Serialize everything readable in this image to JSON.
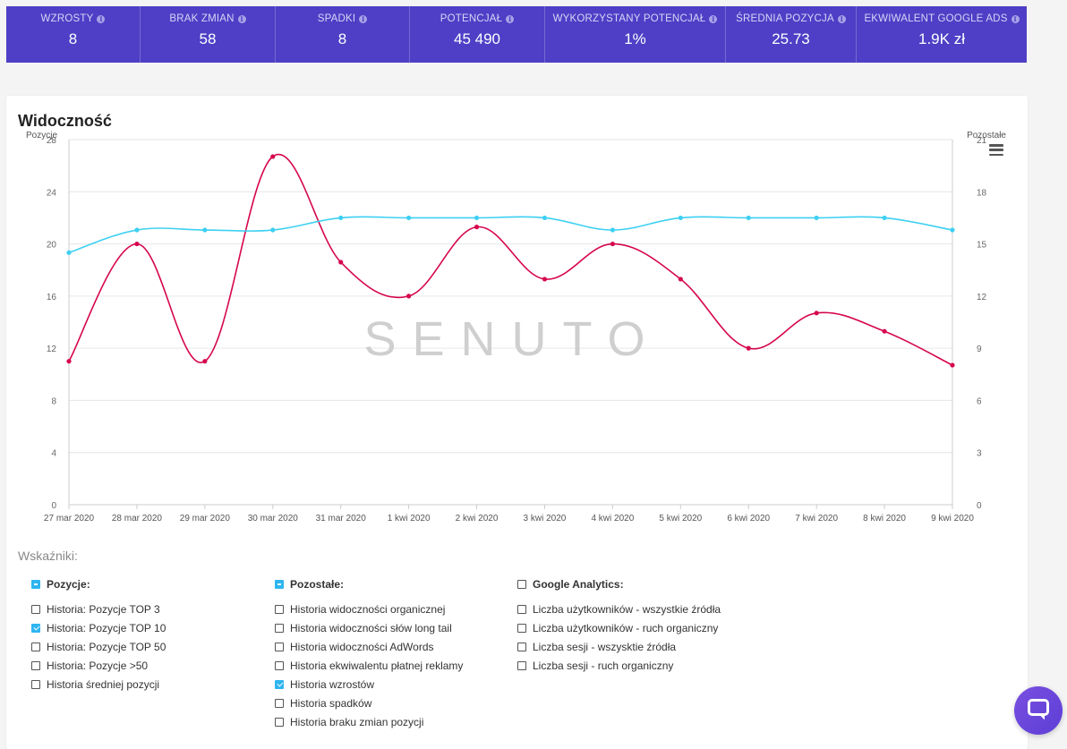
{
  "stats": [
    {
      "label": "WZROSTY",
      "value": "8"
    },
    {
      "label": "BRAK ZMIAN",
      "value": "58"
    },
    {
      "label": "SPADKI",
      "value": "8"
    },
    {
      "label": "POTENCJAŁ",
      "value": "45 490"
    },
    {
      "label": "WYKORZYSTANY POTENCJAŁ",
      "value": "1%"
    },
    {
      "label": "ŚREDNIA POZYCJA",
      "value": "25.73"
    },
    {
      "label": "EKWIWALENT GOOGLE ADS",
      "value": "1.9K zł"
    }
  ],
  "info_glyph": "i",
  "card": {
    "title": "Widoczność"
  },
  "chart_data": {
    "type": "line",
    "categories": [
      "27 mar 2020",
      "28 mar 2020",
      "29 mar 2020",
      "30 mar 2020",
      "31 mar 2020",
      "1 kwi 2020",
      "2 kwi 2020",
      "3 kwi 2020",
      "4 kwi 2020",
      "5 kwi 2020",
      "6 kwi 2020",
      "7 kwi 2020",
      "8 kwi 2020",
      "9 kwi 2020"
    ],
    "ylabel_left": "Pozycje",
    "ylabel_right": "Pozostałe",
    "ylim_left": [
      0,
      28
    ],
    "ylim_right": [
      0,
      21
    ],
    "yticks_left": [
      0,
      4,
      8,
      12,
      16,
      20,
      24,
      28
    ],
    "yticks_right": [
      0,
      3,
      6,
      9,
      12,
      15,
      18,
      21
    ],
    "watermark": "SENUTO",
    "grid": true,
    "series": [
      {
        "axis": "left",
        "color": "#d6064f",
        "values": [
          11,
          20,
          11,
          26.7,
          18.6,
          16,
          21.3,
          17.3,
          20,
          17.3,
          12,
          14.7,
          13.3,
          10.7
        ]
      },
      {
        "axis": "right",
        "color": "#3dd0f2",
        "values": [
          14.5,
          15.8,
          15.8,
          15.8,
          16.5,
          16.5,
          16.5,
          16.5,
          15.8,
          16.5,
          16.5,
          16.5,
          16.5,
          15.8
        ]
      }
    ]
  },
  "indicators": {
    "title": "Wskaźniki:",
    "groups": [
      {
        "header": "Pozycje:",
        "state": "partial",
        "items": [
          {
            "label": "Historia: Pozycje TOP 3",
            "checked": false
          },
          {
            "label": "Historia: Pozycje TOP 10",
            "checked": true
          },
          {
            "label": "Historia: Pozycje TOP 50",
            "checked": false
          },
          {
            "label": "Historia: Pozycje >50",
            "checked": false
          },
          {
            "label": "Historia średniej pozycji",
            "checked": false
          }
        ]
      },
      {
        "header": "Pozostałe:",
        "state": "partial",
        "items": [
          {
            "label": "Historia widoczności organicznej",
            "checked": false
          },
          {
            "label": "Historia widoczności słów long tail",
            "checked": false
          },
          {
            "label": "Historia widoczności AdWords",
            "checked": false
          },
          {
            "label": "Historia ekwiwalentu płatnej reklamy",
            "checked": false
          },
          {
            "label": "Historia wzrostów",
            "checked": true
          },
          {
            "label": "Historia spadków",
            "checked": false
          },
          {
            "label": "Historia braku zmian pozycji",
            "checked": false
          }
        ]
      },
      {
        "header": "Google Analytics:",
        "state": "unchecked",
        "items": [
          {
            "label": "Liczba użytkowników - wszystkie źródła",
            "checked": false
          },
          {
            "label": "Liczba użytkowników - ruch organiczny",
            "checked": false
          },
          {
            "label": "Liczba sesji - wszysktie źródła",
            "checked": false
          },
          {
            "label": "Liczba sesji - ruch organiczny",
            "checked": false
          }
        ]
      }
    ]
  },
  "icons": {
    "menu": "hamburger-menu-icon",
    "chat": "chat-bubble-icon",
    "info": "info-icon"
  }
}
